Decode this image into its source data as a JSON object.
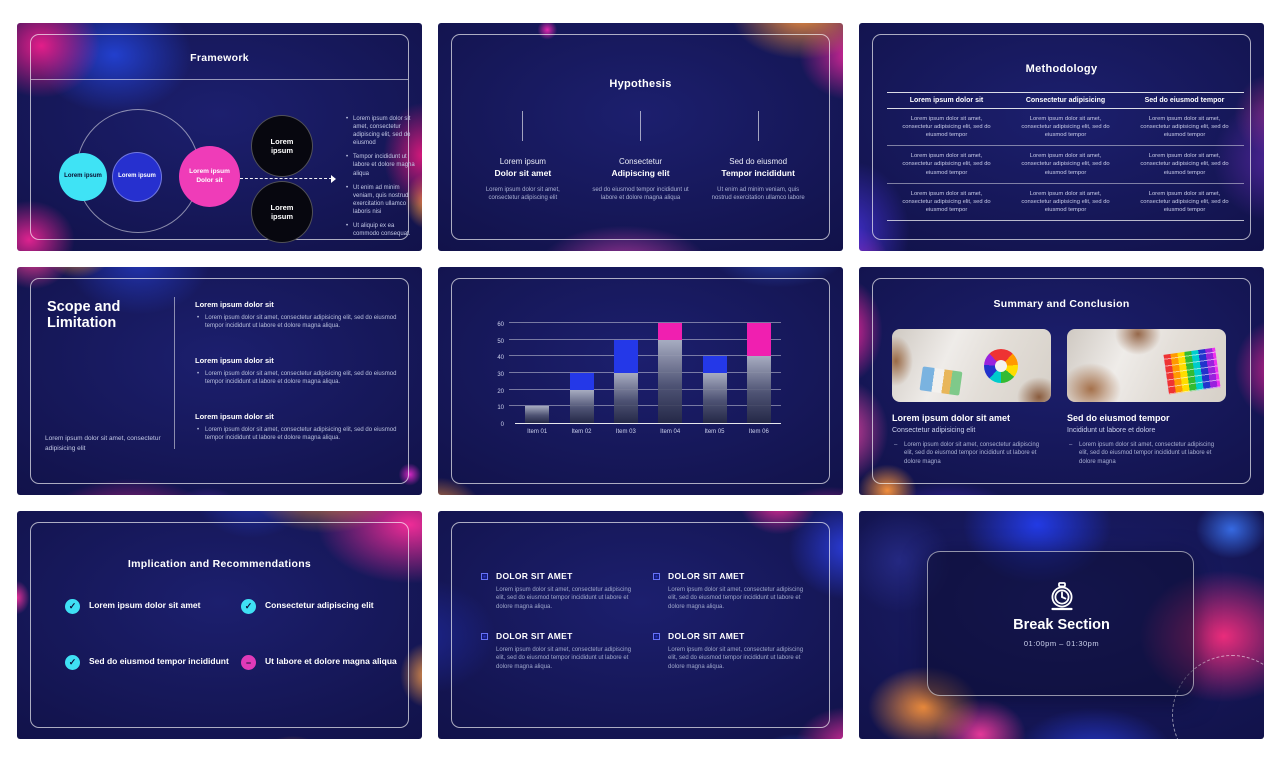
{
  "deck_background": "#ffffff",
  "accent_colors": {
    "cyan": "#3fe3f5",
    "blue": "#2630cf",
    "magenta": "#ef3cb8",
    "pink": "#f2329b",
    "orange": "#ff9a3d",
    "navy": "#12134f"
  },
  "slides": [
    {
      "title": "Framework",
      "circles": [
        "Lorem ipsum",
        "Lorem ipsum",
        "Lorem ipsum Dolor sit"
      ],
      "black_circles": [
        "Lorem ipsum",
        "Lorem ipsum"
      ],
      "bullets": [
        "Lorem ipsum dolor sit amet, consectetur adipiscing elit, sed do eiusmod",
        "Tempor incididunt ut labore et dolore magna aliqua",
        "Ut enim ad minim veniam, quis nostrud exercitation ullamco laboris nisi",
        "Ut aliquip ex ea commodo consequat."
      ]
    },
    {
      "title": "Hypothesis",
      "columns": [
        {
          "line1": "Lorem ipsum",
          "line2": "Dolor sit amet",
          "body": "Lorem ipsum dolor sit amet, consectetur adipiscing elit"
        },
        {
          "line1": "Consectetur",
          "line2": "Adipiscing elit",
          "body": "sed do eiusmod tempor incididunt ut labore et dolore magna aliqua"
        },
        {
          "line1": "Sed do eiusmod",
          "line2": "Tempor incididunt",
          "body": "Ut enim ad minim veniam, quis nostrud exercitation ullamco labore"
        }
      ]
    },
    {
      "title": "Methodology",
      "headers": [
        "Lorem ipsum dolor sit",
        "Consectetur adipisicing",
        "Sed do eiusmod tempor"
      ],
      "rows": [
        [
          "Lorem ipsum dolor sit amet, consectetur adipisicing elit, sed do eiusmod tempor",
          "Lorem ipsum dolor sit amet, consectetur adipisicing elit, sed do eiusmod tempor",
          "Lorem ipsum dolor sit amet, consectetur adipisicing elit, sed do eiusmod tempor"
        ],
        [
          "Lorem ipsum dolor sit amet, consectetur adipisicing elit, sed do eiusmod tempor",
          "Lorem ipsum dolor sit amet, consectetur adipisicing elit, sed do eiusmod tempor",
          "Lorem ipsum dolor sit amet, consectetur adipisicing elit, sed do eiusmod tempor"
        ],
        [
          "Lorem ipsum dolor sit amet, consectetur adipisicing elit, sed do eiusmod tempor",
          "Lorem ipsum dolor sit amet, consectetur adipisicing elit, sed do eiusmod tempor",
          "Lorem ipsum dolor sit amet, consectetur adipisicing elit, sed do eiusmod tempor"
        ]
      ]
    },
    {
      "title": "Scope and Limitation",
      "sections": [
        {
          "heading": "Lorem ipsum dolor sit",
          "bullet": "Lorem ipsum dolor sit amet, consectetur adipisicing elit, sed do eiusmod tempor incididunt ut labore et dolore magna aliqua."
        },
        {
          "heading": "Lorem ipsum dolor sit",
          "bullet": "Lorem ipsum dolor sit amet, consectetur adipisicing elit, sed do eiusmod tempor incididunt ut labore et dolore magna aliqua."
        },
        {
          "heading": "Lorem ipsum dolor sit",
          "bullet": "Lorem ipsum dolor sit amet, consectetur adipisicing elit, sed do eiusmod tempor incididunt ut labore et dolore magna aliqua."
        }
      ],
      "footer": "Lorem ipsum dolor sit amet, consectetur adipisicing elit"
    },
    {
      "title": "",
      "note": "bar chart slide - see chart_data"
    },
    {
      "title": "Summary and Conclusion",
      "cards": [
        {
          "heading": "Lorem ipsum dolor sit amet",
          "sub": "Consectetur adipisicing elit",
          "bullet": "Lorem ipsum dolor sit amet, consectetur adipiscing elit, sed do eiusmod tempor incididunt ut labore et dolore magna"
        },
        {
          "heading": "Sed do eiusmod tempor",
          "sub": "Incididunt ut labore et dolore",
          "bullet": "Lorem ipsum dolor sit amet, consectetur adipiscing elit, sed do eiusmod tempor incididunt ut labore et dolore magna"
        }
      ]
    },
    {
      "title": "Implication and Recommendations",
      "items": [
        {
          "label": "Lorem ipsum dolor sit amet",
          "icon": "check"
        },
        {
          "label": "Consectetur adipiscing elit",
          "icon": "check"
        },
        {
          "label": "Sed do eiusmod tempor incididunt",
          "icon": "check"
        },
        {
          "label": "Ut labore et dolore magna aliqua",
          "icon": "minus"
        }
      ]
    },
    {
      "blocks": [
        {
          "heading": "DOLOR SIT AMET",
          "body": "Lorem ipsum dolor sit amet, consectetur adipiscing elit, sed do eiusmod tempor incididunt ut labore et dolore magna aliqua."
        },
        {
          "heading": "DOLOR SIT AMET",
          "body": "Lorem ipsum dolor sit amet, consectetur adipiscing elit, sed do eiusmod tempor incididunt ut labore et dolore magna aliqua."
        },
        {
          "heading": "DOLOR SIT AMET",
          "body": "Lorem ipsum dolor sit amet, consectetur adipiscing elit, sed do eiusmod tempor incididunt ut labore et dolore magna aliqua."
        },
        {
          "heading": "DOLOR SIT AMET",
          "body": "Lorem ipsum dolor sit amet, consectetur adipiscing elit, sed do eiusmod tempor incididunt ut labore et dolore magna aliqua."
        }
      ]
    },
    {
      "title": "Break Section",
      "time": "01:00pm – 01:30pm"
    }
  ],
  "icons": {
    "check": "✓",
    "minus": "−"
  },
  "chart_data": {
    "type": "bar",
    "stacked": true,
    "title": "",
    "xlabel": "",
    "ylabel": "",
    "categories": [
      "Item 01",
      "Item 02",
      "Item 03",
      "Item 04",
      "Item 05",
      "Item 06"
    ],
    "series": [
      {
        "name": "base-gray",
        "values": [
          10,
          20,
          30,
          50,
          30,
          40
        ]
      },
      {
        "name": "highlight-blue",
        "color": "#2438e8",
        "values": [
          0,
          10,
          20,
          0,
          10,
          0
        ]
      },
      {
        "name": "highlight-pink",
        "color": "#f01fb0",
        "values": [
          0,
          0,
          0,
          10,
          0,
          20
        ]
      }
    ],
    "totals": [
      10,
      30,
      50,
      60,
      40,
      60
    ],
    "y_ticks": [
      0,
      10,
      20,
      30,
      40,
      50,
      60
    ],
    "ylim": [
      0,
      60
    ],
    "grid": true,
    "legend": false
  }
}
